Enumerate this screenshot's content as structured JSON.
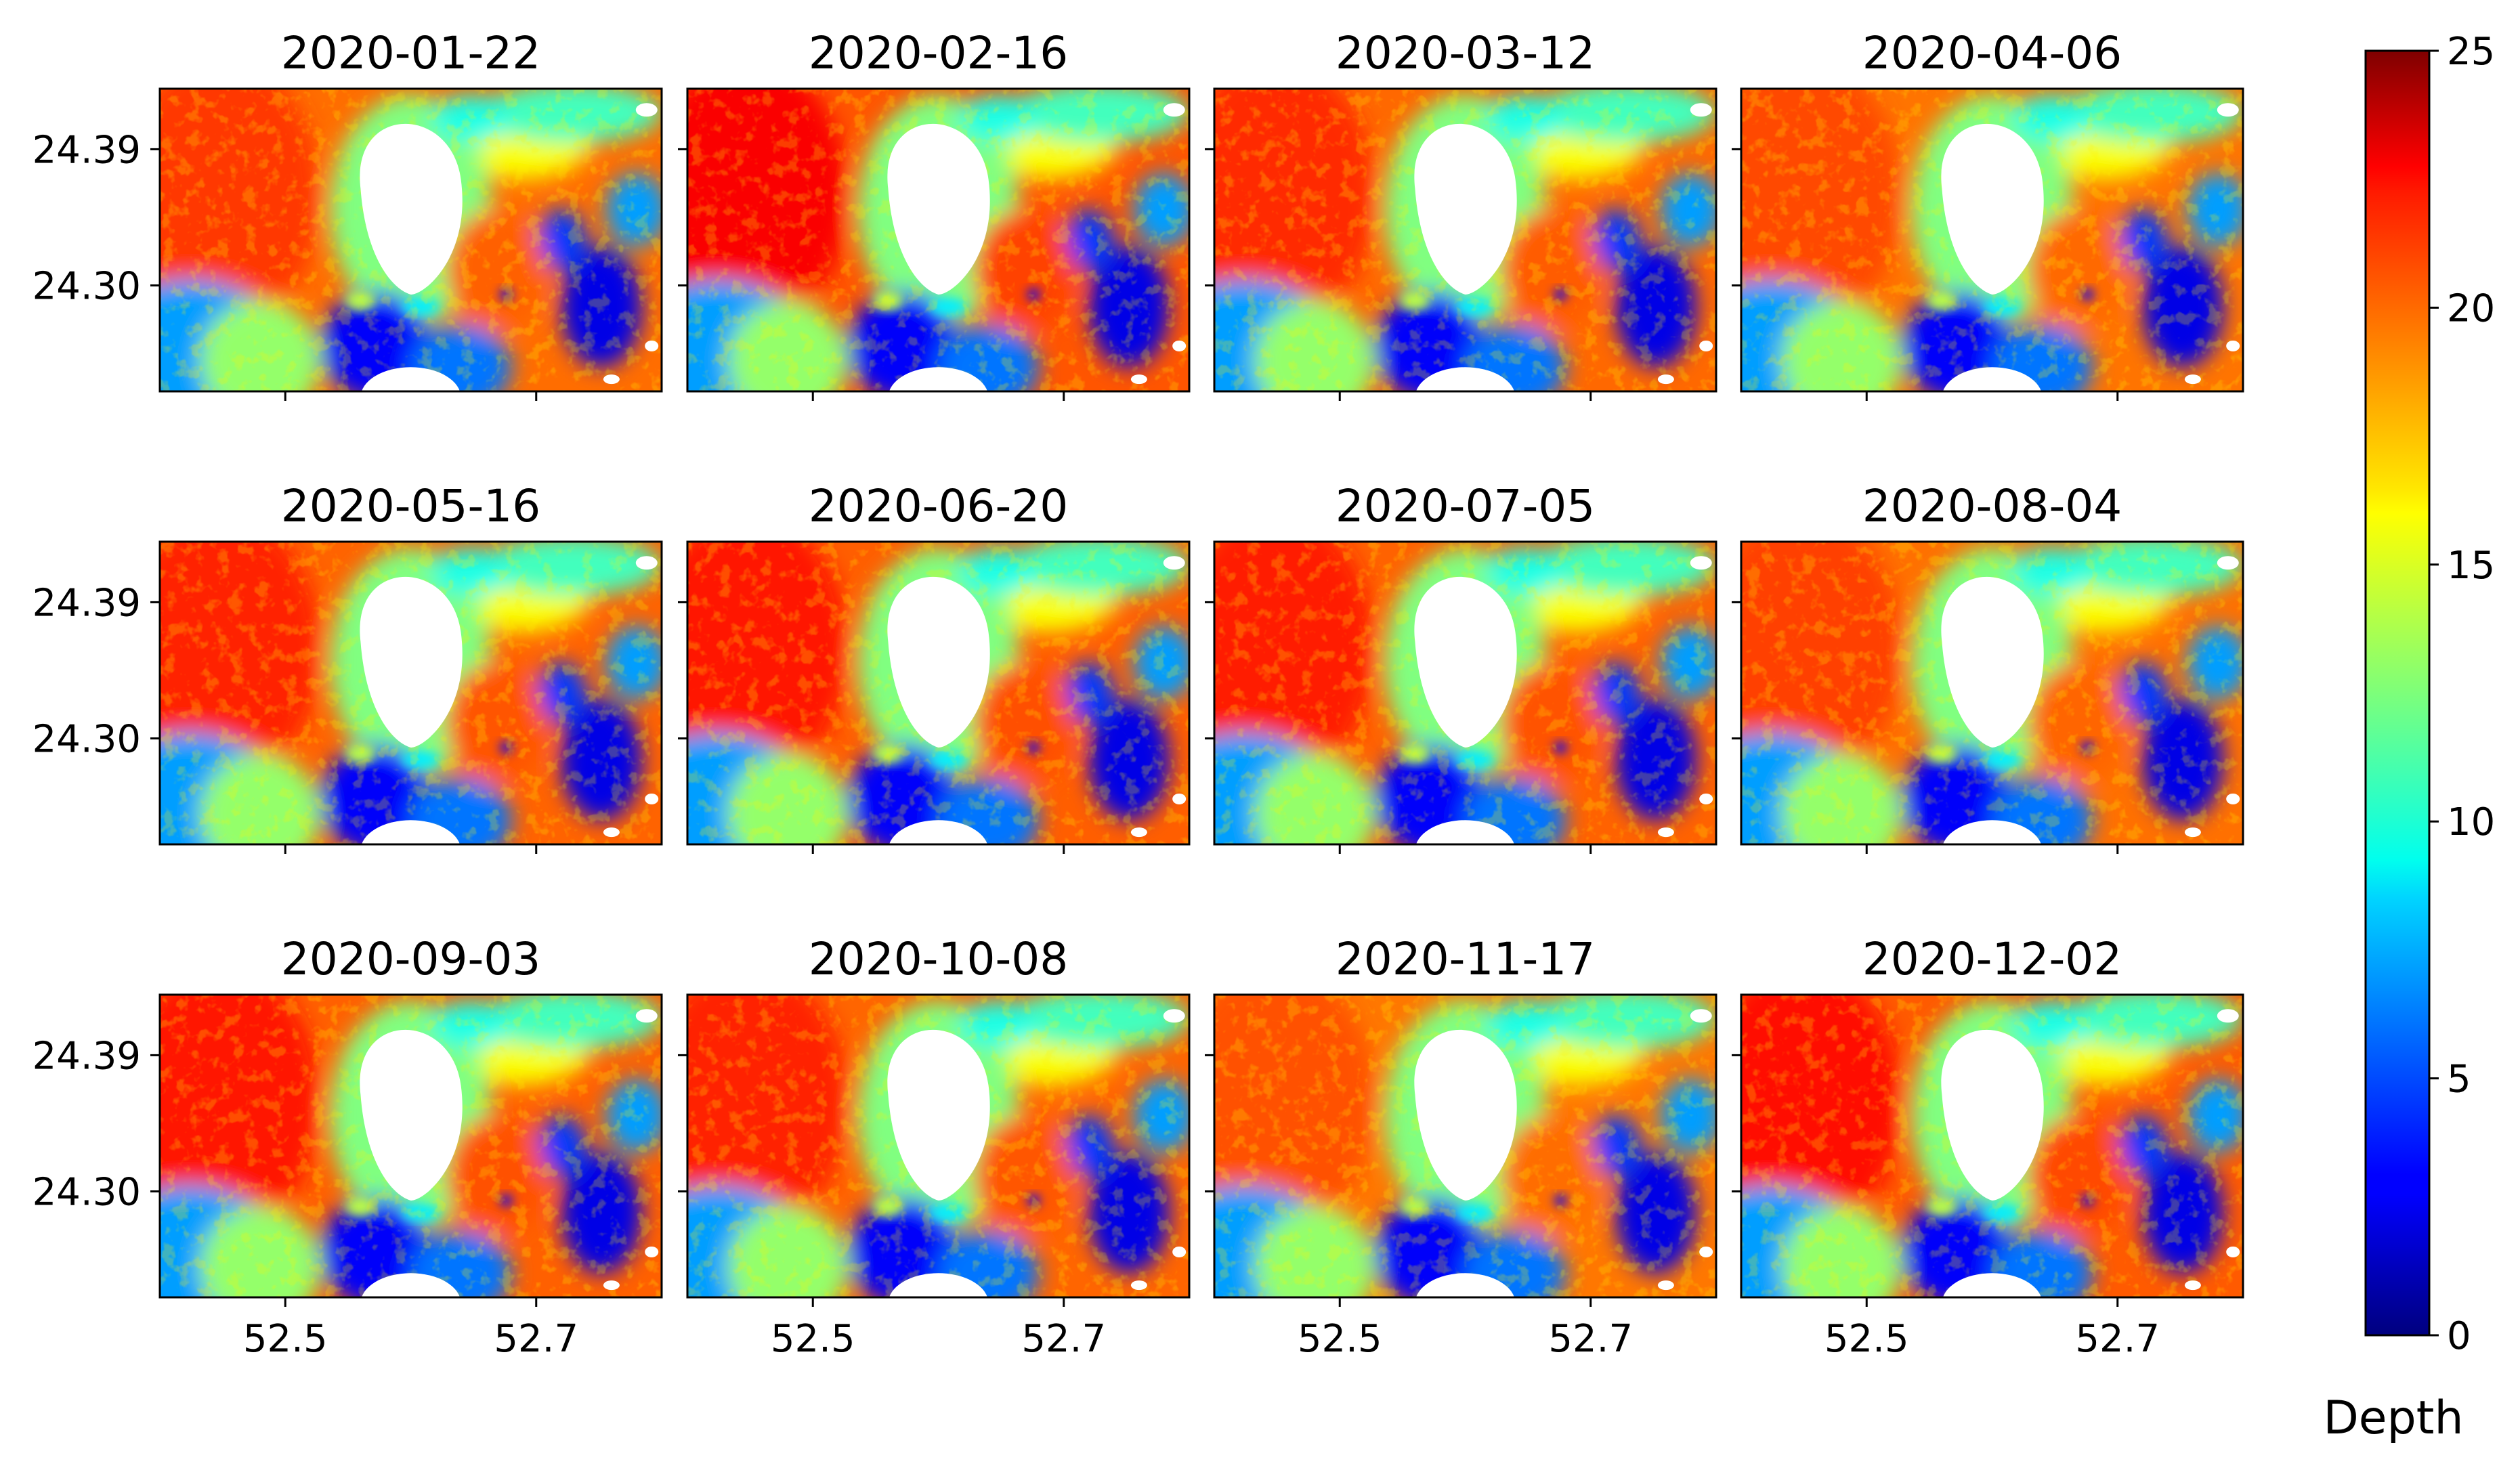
{
  "chart_data": {
    "type": "heatmap",
    "layout": {
      "rows": 3,
      "cols": 4
    },
    "panels": [
      {
        "title": "2020-01-22"
      },
      {
        "title": "2020-02-16"
      },
      {
        "title": "2020-03-12"
      },
      {
        "title": "2020-04-06"
      },
      {
        "title": "2020-05-16"
      },
      {
        "title": "2020-06-20"
      },
      {
        "title": "2020-07-05"
      },
      {
        "title": "2020-08-04"
      },
      {
        "title": "2020-09-03"
      },
      {
        "title": "2020-10-08"
      },
      {
        "title": "2020-11-17"
      },
      {
        "title": "2020-12-02"
      }
    ],
    "xlim": [
      52.4,
      52.8
    ],
    "ylim": [
      24.23,
      24.43
    ],
    "x_ticks": [
      {
        "value": 52.5,
        "label": "52.5"
      },
      {
        "value": 52.7,
        "label": "52.7"
      }
    ],
    "y_ticks": [
      {
        "value": 24.39,
        "label": "24.39"
      },
      {
        "value": 24.3,
        "label": "24.30"
      }
    ],
    "colorbar": {
      "label": "Depth",
      "range": [
        0,
        25
      ],
      "colormap": "jet",
      "ticks": [
        {
          "value": 0,
          "label": "0"
        },
        {
          "value": 5,
          "label": "5"
        },
        {
          "value": 10,
          "label": "10"
        },
        {
          "value": 15,
          "label": "15"
        },
        {
          "value": 20,
          "label": "20"
        },
        {
          "value": 25,
          "label": "25"
        }
      ]
    },
    "grid": false,
    "masked_color": "#ffffff"
  }
}
